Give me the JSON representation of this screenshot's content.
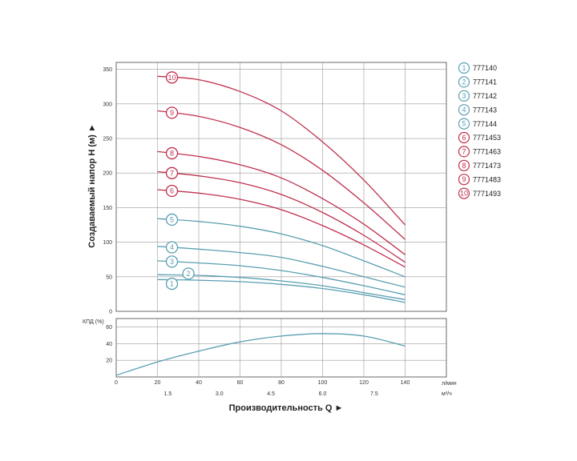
{
  "chart_data": [
    {
      "type": "line",
      "ylabel": "Создаваемый напор H (м) ►",
      "xlim": [
        0,
        160
      ],
      "ylim": [
        0,
        360
      ],
      "yticks": [
        "0",
        "50",
        "100",
        "150",
        "200",
        "250",
        "300",
        "350"
      ],
      "xticks": [
        "0",
        "20",
        "40",
        "60",
        "80",
        "100",
        "120",
        "140"
      ],
      "grid": true,
      "legend_position": "right",
      "colors": {
        "blue_series": "#5a9fb2",
        "red_series": "#c0304d"
      },
      "series": [
        {
          "name": "777140",
          "marker": "1",
          "color": "#5a9fb2",
          "x": [
            20,
            40,
            60,
            80,
            100,
            120,
            140
          ],
          "values": [
            46,
            45,
            43,
            39,
            33,
            24,
            13
          ]
        },
        {
          "name": "777141",
          "marker": "2",
          "color": "#5a9fb2",
          "x": [
            20,
            40,
            60,
            80,
            100,
            120,
            140
          ],
          "values": [
            53,
            52,
            49,
            44,
            37,
            27,
            17
          ]
        },
        {
          "name": "777142",
          "marker": "3",
          "color": "#5a9fb2",
          "x": [
            20,
            40,
            60,
            80,
            100,
            120,
            140
          ],
          "values": [
            73,
            70,
            66,
            59,
            49,
            37,
            24
          ]
        },
        {
          "name": "777143",
          "marker": "4",
          "color": "#5a9fb2",
          "x": [
            20,
            40,
            60,
            80,
            100,
            120,
            140
          ],
          "values": [
            94,
            90,
            85,
            78,
            65,
            50,
            35
          ]
        },
        {
          "name": "777144",
          "marker": "5",
          "color": "#5a9fb2",
          "x": [
            20,
            40,
            60,
            80,
            100,
            120,
            140
          ],
          "values": [
            134,
            130,
            123,
            112,
            95,
            73,
            50
          ]
        },
        {
          "name": "7771453",
          "marker": "6",
          "color": "#c0304d",
          "x": [
            20,
            40,
            60,
            80,
            100,
            120,
            140
          ],
          "values": [
            176,
            171,
            162,
            147,
            124,
            96,
            64
          ]
        },
        {
          "name": "7771463",
          "marker": "7",
          "color": "#c0304d",
          "x": [
            20,
            40,
            60,
            80,
            100,
            120,
            140
          ],
          "values": [
            202,
            196,
            186,
            169,
            143,
            110,
            71
          ]
        },
        {
          "name": "7771473",
          "marker": "8",
          "color": "#c0304d",
          "x": [
            20,
            40,
            60,
            80,
            100,
            120,
            140
          ],
          "values": [
            231,
            224,
            212,
            193,
            163,
            126,
            82
          ]
        },
        {
          "name": "7771483",
          "marker": "9",
          "color": "#c0304d",
          "x": [
            20,
            40,
            60,
            80,
            100,
            120,
            140
          ],
          "values": [
            290,
            282,
            266,
            241,
            204,
            157,
            104
          ]
        },
        {
          "name": "7771493",
          "marker": "10",
          "color": "#c0304d",
          "x": [
            20,
            40,
            60,
            80,
            100,
            120,
            140
          ],
          "values": [
            340,
            335,
            318,
            290,
            245,
            190,
            125
          ]
        }
      ]
    },
    {
      "type": "line",
      "ylabel": "КПД (%)",
      "xlabel": "Производительность Q ►",
      "xlim": [
        0,
        160
      ],
      "ylim": [
        0,
        70
      ],
      "yticks": [
        "20",
        "40",
        "60"
      ],
      "xticks": [
        "0",
        "20",
        "40",
        "60",
        "80",
        "100",
        "120",
        "140"
      ],
      "xticks2": [
        "1.5",
        "3.0",
        "4.5",
        "6.0",
        "7.5"
      ],
      "xunit1": "л/мин",
      "xunit2": "м³/ч",
      "grid": true,
      "series": [
        {
          "color": "#5a9fb2",
          "x": [
            0,
            20,
            40,
            60,
            80,
            100,
            120,
            140
          ],
          "values": [
            2,
            18,
            31,
            42,
            49,
            52,
            49,
            37
          ]
        }
      ]
    }
  ]
}
